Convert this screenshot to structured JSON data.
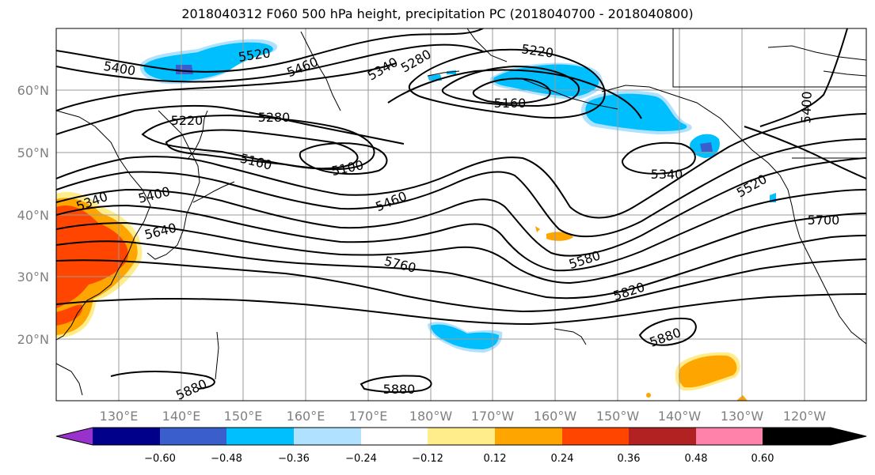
{
  "title": "2018040312 F060 500 hPa height, precipitation PC (2018040700 - 2018040800)",
  "lat_labels": [
    "60°N",
    "50°N",
    "40°N",
    "30°N",
    "20°N"
  ],
  "lon_labels": [
    "130°E",
    "140°E",
    "150°E",
    "160°E",
    "170°E",
    "180°W",
    "170°W",
    "160°W",
    "150°W",
    "140°W",
    "130°W",
    "120°W"
  ],
  "contour_labels": [
    "5400",
    "5520",
    "5460",
    "5340",
    "5280",
    "5220",
    "5160",
    "5220",
    "5280",
    "5160",
    "5100",
    "5400",
    "5340",
    "5400",
    "5640",
    "5460",
    "5340",
    "5520",
    "5700",
    "5760",
    "5580",
    "5820",
    "5880",
    "5880",
    "5880"
  ],
  "colorbar": {
    "ticks": [
      "−0.60",
      "−0.48",
      "−0.36",
      "−0.24",
      "−0.12",
      "0.12",
      "0.24",
      "0.36",
      "0.48",
      "0.60"
    ],
    "colors": [
      "#9932cc",
      "#00008b",
      "#3a5fcd",
      "#00bfff",
      "#b0e2ff",
      "#ffffff",
      "#ffec8b",
      "#ffa500",
      "#ff4500",
      "#b22222",
      "#ff82ab"
    ]
  },
  "chart_data": {
    "type": "contour_map",
    "title": "2018040312 F060 500 hPa height, precipitation PC (2018040700 - 2018040800)",
    "contour_field": "500 hPa height",
    "contour_levels_labeled": [
      5100,
      5160,
      5220,
      5280,
      5340,
      5400,
      5460,
      5520,
      5580,
      5640,
      5700,
      5760,
      5820,
      5880
    ],
    "shaded_field": "precipitation PC",
    "colorbar_ticks": [
      -0.6,
      -0.48,
      -0.36,
      -0.24,
      -0.12,
      0.12,
      0.24,
      0.36,
      0.48,
      0.6
    ],
    "lat_ticks": [
      "60°N",
      "50°N",
      "40°N",
      "30°N",
      "20°N"
    ],
    "lon_ticks": [
      "130°E",
      "140°E",
      "150°E",
      "160°E",
      "170°E",
      "180°W",
      "170°W",
      "160°W",
      "150°W",
      "140°W",
      "130°W",
      "120°W"
    ],
    "grid": true,
    "colorbar_placement": "bottom"
  }
}
